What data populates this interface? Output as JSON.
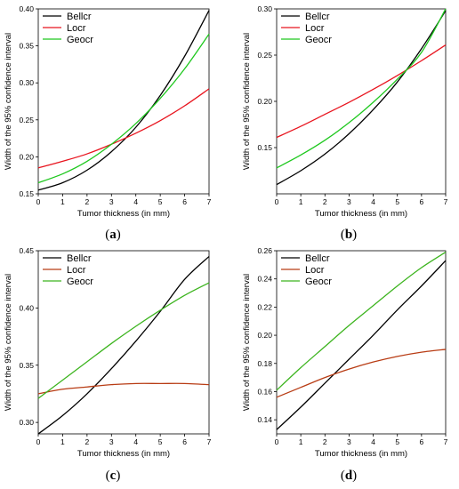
{
  "chart_data": [
    {
      "type": "line",
      "caption": "(a)",
      "xlabel": "Tumor thickness (in mm)",
      "ylabel": "Width of the 95% confidence interval",
      "xlim": [
        0,
        7
      ],
      "ylim": [
        0.15,
        0.4
      ],
      "xticks": [
        0,
        1,
        2,
        3,
        4,
        5,
        6,
        7
      ],
      "yticks": [
        0.15,
        0.2,
        0.25,
        0.3,
        0.35,
        0.4
      ],
      "ytick_labels": [
        "0.15",
        "0.20",
        "0.25",
        "0.30",
        "0.35",
        "0.40"
      ],
      "legend": "top-left",
      "grid": false,
      "x": [
        0,
        1,
        2,
        3,
        4,
        5,
        6,
        7
      ],
      "series": [
        {
          "name": "Bellcr",
          "color": "#000000",
          "values": [
            0.155,
            0.165,
            0.182,
            0.207,
            0.24,
            0.283,
            0.336,
            0.398
          ]
        },
        {
          "name": "Locr",
          "color": "#e8141e",
          "values": [
            0.185,
            0.194,
            0.204,
            0.217,
            0.232,
            0.249,
            0.269,
            0.292
          ]
        },
        {
          "name": "Geocr",
          "color": "#1ec81e",
          "values": [
            0.165,
            0.177,
            0.194,
            0.217,
            0.245,
            0.279,
            0.319,
            0.366
          ]
        }
      ]
    },
    {
      "type": "line",
      "caption": "(b)",
      "xlabel": "Tumor thickness (in mm)",
      "ylabel": "Width of the 95% confidence interval",
      "xlim": [
        0,
        7
      ],
      "ylim": [
        0.1,
        0.3
      ],
      "xticks": [
        0,
        1,
        2,
        3,
        4,
        5,
        6,
        7
      ],
      "yticks": [
        0.15,
        0.2,
        0.25,
        0.3
      ],
      "ytick_labels": [
        "0.15",
        "0.20",
        "0.25",
        "0.30"
      ],
      "legend": "top-left",
      "grid": false,
      "x": [
        0,
        1,
        2,
        3,
        4,
        5,
        6,
        7
      ],
      "series": [
        {
          "name": "Bellcr",
          "color": "#000000",
          "values": [
            0.11,
            0.125,
            0.143,
            0.165,
            0.191,
            0.221,
            0.257,
            0.298
          ]
        },
        {
          "name": "Locr",
          "color": "#e8141e",
          "values": [
            0.161,
            0.173,
            0.186,
            0.199,
            0.213,
            0.228,
            0.244,
            0.261
          ]
        },
        {
          "name": "Geocr",
          "color": "#1ec81e",
          "values": [
            0.128,
            0.142,
            0.158,
            0.177,
            0.199,
            0.224,
            0.253,
            0.3
          ]
        }
      ]
    },
    {
      "type": "line",
      "caption": "(c)",
      "xlabel": "Tumor thickness (in mm)",
      "ylabel": "Width of the 95% confidence interval",
      "xlim": [
        0,
        7
      ],
      "ylim": [
        0.29,
        0.45
      ],
      "xticks": [
        0,
        1,
        2,
        3,
        4,
        5,
        6,
        7
      ],
      "yticks": [
        0.3,
        0.35,
        0.4,
        0.45
      ],
      "ytick_labels": [
        "0.30",
        "0.35",
        "0.40",
        "0.45"
      ],
      "legend": "top-left",
      "grid": false,
      "x": [
        0,
        1,
        2,
        3,
        4,
        5,
        6,
        7
      ],
      "series": [
        {
          "name": "Bellcr",
          "color": "#000000",
          "values": [
            0.29,
            0.306,
            0.325,
            0.347,
            0.371,
            0.397,
            0.425,
            0.445
          ]
        },
        {
          "name": "Locr",
          "color": "#b83c14",
          "values": [
            0.325,
            0.329,
            0.331,
            0.333,
            0.334,
            0.334,
            0.334,
            0.333
          ]
        },
        {
          "name": "Geocr",
          "color": "#3cb41e",
          "values": [
            0.321,
            0.337,
            0.353,
            0.369,
            0.384,
            0.398,
            0.411,
            0.422
          ]
        }
      ]
    },
    {
      "type": "line",
      "caption": "(d)",
      "xlabel": "Tumor thickness (in mm)",
      "ylabel": "Width of the 95% confidence interval",
      "xlim": [
        0,
        7
      ],
      "ylim": [
        0.13,
        0.26
      ],
      "xticks": [
        0,
        1,
        2,
        3,
        4,
        5,
        6,
        7
      ],
      "yticks": [
        0.14,
        0.16,
        0.18,
        0.2,
        0.22,
        0.24,
        0.26
      ],
      "ytick_labels": [
        "0.14",
        "0.16",
        "0.18",
        "0.20",
        "0.22",
        "0.24",
        "0.26"
      ],
      "legend": "top-left",
      "grid": false,
      "x": [
        0,
        1,
        2,
        3,
        4,
        5,
        6,
        7
      ],
      "series": [
        {
          "name": "Bellcr",
          "color": "#000000",
          "values": [
            0.133,
            0.149,
            0.166,
            0.183,
            0.2,
            0.218,
            0.235,
            0.253
          ]
        },
        {
          "name": "Locr",
          "color": "#b83c14",
          "values": [
            0.156,
            0.163,
            0.17,
            0.176,
            0.181,
            0.185,
            0.188,
            0.19
          ]
        },
        {
          "name": "Geocr",
          "color": "#3cb41e",
          "values": [
            0.161,
            0.177,
            0.192,
            0.207,
            0.221,
            0.235,
            0.248,
            0.259
          ]
        }
      ]
    }
  ]
}
